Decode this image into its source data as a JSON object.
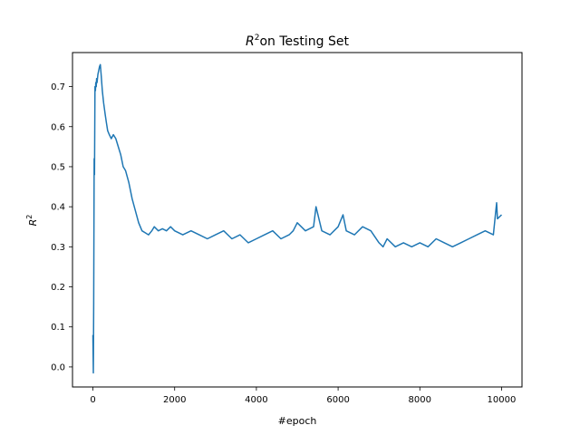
{
  "chart_data": {
    "type": "line",
    "title_base": "on Testing Set",
    "title_symbol": "R",
    "title_superscript": "2",
    "xlabel": "#epoch",
    "ylabel_symbol": "R",
    "ylabel_superscript": "2",
    "xlim": [
      -500,
      10500
    ],
    "ylim": [
      -0.05,
      0.785
    ],
    "x_ticks": [
      0,
      2000,
      4000,
      6000,
      8000,
      10000
    ],
    "x_tick_labels": [
      "0",
      "2000",
      "4000",
      "6000",
      "8000",
      "10000"
    ],
    "y_ticks": [
      0.0,
      0.1,
      0.2,
      0.3,
      0.4,
      0.5,
      0.6,
      0.7
    ],
    "y_tick_labels": [
      "0.0",
      "0.1",
      "0.2",
      "0.3",
      "0.4",
      "0.5",
      "0.6",
      "0.7"
    ],
    "grid": false,
    "legend": "none",
    "series": [
      {
        "color": "#1f77b4",
        "x": [
          0,
          10,
          20,
          30,
          40,
          50,
          60,
          70,
          80,
          90,
          100,
          120,
          140,
          160,
          180,
          200,
          230,
          260,
          300,
          330,
          360,
          400,
          450,
          500,
          560,
          620,
          680,
          740,
          800,
          880,
          960,
          1040,
          1120,
          1200,
          1280,
          1360,
          1440,
          1500,
          1600,
          1700,
          1800,
          1900,
          2000,
          2200,
          2400,
          2600,
          2800,
          3000,
          3200,
          3400,
          3600,
          3800,
          4000,
          4200,
          4400,
          4600,
          4800,
          4900,
          5000,
          5200,
          5400,
          5460,
          5600,
          5800,
          6000,
          6120,
          6200,
          6400,
          6600,
          6800,
          7000,
          7100,
          7200,
          7400,
          7600,
          7800,
          8000,
          8200,
          8400,
          8600,
          8800,
          9000,
          9200,
          9400,
          9600,
          9800,
          9880,
          9900,
          10000
        ],
        "values": [
          0.08,
          -0.015,
          0.16,
          0.52,
          0.48,
          0.7,
          0.69,
          0.71,
          0.7,
          0.72,
          0.71,
          0.73,
          0.74,
          0.75,
          0.755,
          0.73,
          0.69,
          0.66,
          0.63,
          0.61,
          0.59,
          0.58,
          0.57,
          0.58,
          0.57,
          0.55,
          0.53,
          0.5,
          0.49,
          0.46,
          0.42,
          0.39,
          0.36,
          0.34,
          0.335,
          0.33,
          0.34,
          0.35,
          0.34,
          0.345,
          0.34,
          0.35,
          0.34,
          0.33,
          0.34,
          0.33,
          0.32,
          0.33,
          0.34,
          0.32,
          0.33,
          0.31,
          0.32,
          0.33,
          0.34,
          0.32,
          0.33,
          0.34,
          0.36,
          0.34,
          0.35,
          0.4,
          0.34,
          0.33,
          0.35,
          0.38,
          0.34,
          0.33,
          0.35,
          0.34,
          0.31,
          0.3,
          0.32,
          0.3,
          0.31,
          0.3,
          0.31,
          0.3,
          0.32,
          0.31,
          0.3,
          0.31,
          0.32,
          0.33,
          0.34,
          0.33,
          0.41,
          0.37,
          0.38
        ]
      }
    ]
  }
}
